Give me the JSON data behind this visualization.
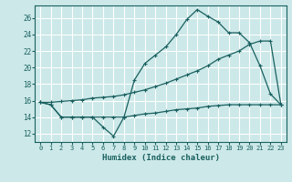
{
  "title": "",
  "xlabel": "Humidex (Indice chaleur)",
  "ylabel": "",
  "bg_color": "#cce8e8",
  "grid_color": "#aad4d4",
  "line_color": "#1a6060",
  "xlim": [
    -0.5,
    23.5
  ],
  "ylim": [
    11,
    27.5
  ],
  "xtick_labels": [
    "0",
    "1",
    "2",
    "3",
    "4",
    "5",
    "6",
    "7",
    "8",
    "9",
    "10",
    "11",
    "12",
    "13",
    "14",
    "15",
    "16",
    "17",
    "18",
    "19",
    "20",
    "21",
    "22",
    "23"
  ],
  "yticks": [
    12,
    14,
    16,
    18,
    20,
    22,
    24,
    26
  ],
  "line1_x": [
    0,
    1,
    2,
    3,
    4,
    5,
    6,
    7,
    8,
    9,
    10,
    11,
    12,
    13,
    14,
    15,
    16,
    17,
    18,
    19,
    20,
    21,
    22,
    23
  ],
  "line1_y": [
    15.8,
    15.5,
    14.0,
    14.0,
    14.0,
    14.0,
    12.8,
    11.7,
    14.0,
    18.5,
    20.5,
    21.5,
    22.5,
    24.0,
    25.8,
    27.0,
    26.2,
    25.5,
    24.2,
    24.2,
    23.0,
    20.2,
    16.8,
    15.5
  ],
  "line2_x": [
    0,
    1,
    2,
    3,
    4,
    5,
    6,
    7,
    8,
    9,
    10,
    11,
    12,
    13,
    14,
    15,
    16,
    17,
    18,
    19,
    20,
    21,
    22,
    23
  ],
  "line2_y": [
    15.8,
    15.8,
    15.9,
    16.0,
    16.1,
    16.3,
    16.4,
    16.5,
    16.7,
    17.0,
    17.3,
    17.7,
    18.1,
    18.6,
    19.1,
    19.6,
    20.2,
    21.0,
    21.5,
    22.0,
    22.8,
    23.2,
    23.2,
    15.5
  ],
  "line3_x": [
    0,
    1,
    2,
    3,
    4,
    5,
    6,
    7,
    8,
    9,
    10,
    11,
    12,
    13,
    14,
    15,
    16,
    17,
    18,
    19,
    20,
    21,
    22,
    23
  ],
  "line3_y": [
    15.8,
    15.5,
    14.0,
    14.0,
    14.0,
    14.0,
    14.0,
    14.0,
    14.0,
    14.2,
    14.4,
    14.5,
    14.7,
    14.9,
    15.0,
    15.1,
    15.3,
    15.4,
    15.5,
    15.5,
    15.5,
    15.5,
    15.5,
    15.5
  ]
}
